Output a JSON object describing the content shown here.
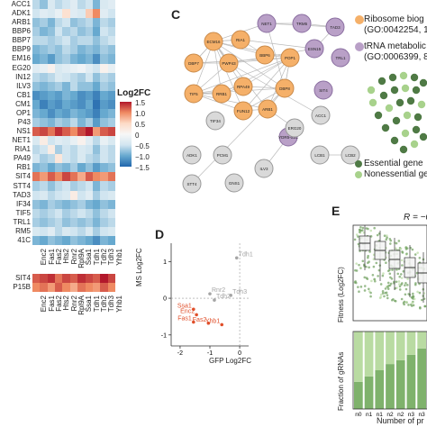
{
  "heatmap": {
    "rows": [
      "ACC1",
      "ADK1",
      "ARB1",
      "BBP6",
      "BBP7",
      "BBP9",
      "EM16",
      "EG20",
      "IN12",
      "ILV3",
      "CB1",
      "CM1",
      "OP1",
      "P43",
      "NS1",
      "NET1",
      "RIA1",
      "PA49",
      "RB1",
      "SIT4",
      "STT4",
      "TAD3",
      "IF34",
      "TIF5",
      "TRL1",
      "RM5",
      "41C"
    ],
    "cols": [
      "Enc2",
      "Fas1",
      "Fas2",
      "Hts2",
      "Rnr2",
      "Rpl9A",
      "Ssa1",
      "Tdh1",
      "Tdh2",
      "Tdh3",
      "Yhb1"
    ],
    "bottom_rows": [
      "SIT4",
      "P15B"
    ],
    "values": [
      [
        -0.6,
        -0.8,
        -0.4,
        -0.6,
        -0.5,
        -0.3,
        -0.6,
        -0.5,
        -0.9,
        -0.4,
        -0.3
      ],
      [
        -0.5,
        -0.3,
        -0.4,
        -0.2,
        0.4,
        -0.3,
        -0.4,
        0.6,
        1.0,
        -0.3,
        -0.5
      ],
      [
        -0.8,
        -0.7,
        -0.9,
        -0.6,
        -0.5,
        -0.8,
        -0.7,
        -0.6,
        -0.9,
        -0.6,
        -0.7
      ],
      [
        -0.7,
        -0.9,
        -0.8,
        -0.5,
        -0.7,
        -0.6,
        -0.8,
        -0.7,
        -1.0,
        -0.5,
        -0.6
      ],
      [
        -0.6,
        -0.6,
        -0.7,
        -0.6,
        -0.5,
        -0.7,
        -0.6,
        -0.6,
        -0.8,
        -0.6,
        -0.5
      ],
      [
        -0.9,
        -0.8,
        -0.7,
        -0.8,
        -0.6,
        -0.7,
        -0.9,
        -0.8,
        -0.9,
        -0.7,
        -0.8
      ],
      [
        -1.0,
        -0.9,
        -1.1,
        -0.8,
        -0.7,
        -0.9,
        -1.0,
        -0.9,
        -1.2,
        -0.8,
        -0.9
      ],
      [
        -0.3,
        -0.2,
        0.1,
        -0.4,
        -0.3,
        -0.2,
        -0.1,
        -0.3,
        -0.5,
        0.1,
        -0.2
      ],
      [
        -0.6,
        -0.7,
        -0.6,
        -0.4,
        -0.5,
        -0.6,
        -0.7,
        -0.5,
        -0.8,
        -0.6,
        -0.7
      ],
      [
        -0.8,
        -0.9,
        -0.8,
        -0.7,
        -0.9,
        -0.6,
        -0.8,
        -0.8,
        -1.0,
        -0.7,
        -0.8
      ],
      [
        -1.2,
        -1.1,
        -1.0,
        -1.1,
        -0.9,
        -1.0,
        -1.2,
        -1.1,
        -1.3,
        -1.0,
        -1.1
      ],
      [
        -1.0,
        -1.3,
        -1.1,
        -1.2,
        -1.0,
        -1.1,
        -1.2,
        -1.0,
        -1.4,
        -1.1,
        -1.2
      ],
      [
        -0.9,
        -1.0,
        -1.2,
        -1.0,
        -1.1,
        -0.9,
        -1.0,
        -1.1,
        -1.3,
        -1.0,
        -0.9
      ],
      [
        -0.7,
        -0.8,
        -0.9,
        -0.7,
        -0.8,
        -0.6,
        -0.9,
        -0.7,
        -1.1,
        -0.8,
        -0.7
      ],
      [
        1.2,
        1.3,
        1.1,
        1.4,
        1.2,
        1.0,
        1.3,
        1.5,
        0.9,
        1.2,
        1.3
      ],
      [
        -0.4,
        0.2,
        -0.5,
        -0.3,
        -0.4,
        -0.2,
        0.1,
        -0.3,
        -0.6,
        -0.2,
        -0.4
      ],
      [
        -0.6,
        -0.5,
        0.2,
        -0.7,
        -0.5,
        -0.6,
        -0.4,
        -0.5,
        -0.8,
        -0.5,
        -0.6
      ],
      [
        -0.5,
        -0.7,
        -0.6,
        0.3,
        -0.5,
        -0.6,
        -0.4,
        -0.6,
        -0.7,
        -0.5,
        -0.6
      ],
      [
        -0.9,
        -0.8,
        -1.0,
        -0.8,
        -0.9,
        -0.7,
        -1.0,
        -0.8,
        -1.1,
        -0.9,
        -0.8
      ],
      [
        1.1,
        0.9,
        1.2,
        1.0,
        1.3,
        1.1,
        0.8,
        1.2,
        1.0,
        0.9,
        1.1
      ],
      [
        -0.7,
        -0.6,
        -0.8,
        -0.6,
        -0.5,
        -0.7,
        -0.6,
        -0.5,
        -0.9,
        -0.6,
        -0.7
      ],
      [
        -0.5,
        -0.4,
        -0.6,
        -0.5,
        -0.4,
        0.2,
        -0.5,
        -0.3,
        -0.7,
        -0.5,
        -0.4
      ],
      [
        -0.8,
        -0.9,
        -0.7,
        -0.8,
        -0.9,
        -0.8,
        -0.7,
        -0.9,
        -1.0,
        -0.8,
        -0.9
      ],
      [
        -0.6,
        -0.7,
        -0.6,
        -0.5,
        -0.7,
        -0.6,
        -0.5,
        -0.6,
        -0.8,
        -0.6,
        -0.5
      ],
      [
        -0.7,
        -0.8,
        -0.7,
        -0.6,
        -0.8,
        -0.7,
        -0.8,
        -0.7,
        -0.9,
        -0.7,
        -0.6
      ],
      [
        -0.4,
        -0.5,
        -0.3,
        -0.6,
        -0.4,
        -0.5,
        -0.6,
        -0.4,
        -0.7,
        -0.5,
        -0.4
      ],
      [
        -0.9,
        -1.0,
        -0.8,
        -0.9,
        -1.0,
        -0.8,
        -0.9,
        -1.0,
        -1.2,
        -0.9,
        -1.0
      ]
    ],
    "bottom_values": [
      [
        1.2,
        1.3,
        1.4,
        1.1,
        1.3,
        1.2,
        1.4,
        1.3,
        1.2,
        1.5,
        1.3
      ],
      [
        1.0,
        1.1,
        0.9,
        1.2,
        1.0,
        0.8,
        1.1,
        1.0,
        0.9,
        1.2,
        1.0
      ]
    ]
  },
  "legend": {
    "title": "Log2FC",
    "ticks": [
      "1.5",
      "1.0",
      "0.5",
      "0",
      "−0.5",
      "−1.0",
      "−1.5"
    ]
  },
  "panel_c": {
    "label": "C",
    "ribosome_label": [
      "Ribosome biog",
      "(GO:0042254, 1:"
    ],
    "trna_label": [
      "tRNA metabolic",
      "(GO:0006399, 8"
    ],
    "essential_label": "Essential gene",
    "nonessential_label": "Nonessential gene",
    "orange_nodes": [
      "ECM16",
      "RIA1",
      "BBP6",
      "POP1",
      "DBP7",
      "PWP43",
      "TIF5",
      "RRB1",
      "RPA49",
      "DBP8",
      "FUN12",
      "ARB1"
    ],
    "purple_nodes": [
      "NET1",
      "TRM5",
      "TAD3",
      "ESN15",
      "TRL1",
      "SIT4",
      "YDR5-01C"
    ],
    "grey_nodes": [
      "TIF34",
      "ACC1",
      "ERG20",
      "ADK1",
      "PCM1",
      "LCB1",
      "LCB2",
      "ILV3",
      "STT4",
      "GNS1"
    ]
  },
  "panel_d": {
    "label": "D",
    "xlabel": "GFP Log2FC",
    "ylabel": "MS Log2FC",
    "xticks": [
      "-2",
      "-1",
      "0"
    ],
    "yticks": [
      "1",
      "0",
      "-1"
    ],
    "colors": {
      "up": "#e04f2a",
      "neutral": "#a5a5a5"
    },
    "chart_data": {
      "type": "scatter",
      "xlim": [
        -2.3,
        0.3
      ],
      "ylim": [
        -1.3,
        1.5
      ],
      "points": [
        {
          "label": "Tdh1",
          "x": -0.1,
          "y": 1.1,
          "group": "neutral"
        },
        {
          "label": "Rnr2",
          "x": -1.0,
          "y": 0.12,
          "group": "neutral"
        },
        {
          "label": "Tdh2",
          "x": -0.85,
          "y": -0.05,
          "group": "neutral"
        },
        {
          "label": "Tdh3",
          "x": -0.3,
          "y": 0.08,
          "group": "neutral"
        },
        {
          "label": "Ssa1",
          "x": -1.55,
          "y": -0.3,
          "group": "up"
        },
        {
          "label": "Enc2",
          "x": -1.45,
          "y": -0.45,
          "group": "up"
        },
        {
          "label": "Fas1",
          "x": -1.55,
          "y": -0.65,
          "group": "up"
        },
        {
          "label": "Fas2",
          "x": -1.05,
          "y": -0.68,
          "group": "up"
        },
        {
          "label": "Yhb1",
          "x": -0.6,
          "y": -0.72,
          "group": "up"
        }
      ]
    }
  },
  "panel_e": {
    "label": "E",
    "r_label": "R = −0.",
    "ylabel_top": "Fitness (Log2FC)",
    "ylabel_bottom": "Fraction of gRNAs",
    "xlabel": "Number of pr",
    "xticks": [
      "n0",
      "n1",
      "n1",
      "n2",
      "n2",
      "n3",
      "n3"
    ],
    "colors": {
      "dark": "#7fb26c",
      "light": "#b9dba2"
    },
    "chart_data": {
      "type": "bar",
      "categories": [
        "n0",
        "n0.5",
        "n1",
        "n1.5",
        "n2",
        "n2.5",
        "n3"
      ],
      "series": [
        {
          "values": [
            0.35,
            0.42,
            0.5,
            0.58,
            0.63,
            0.7,
            0.78
          ]
        },
        {
          "values": [
            0.65,
            0.58,
            0.5,
            0.42,
            0.37,
            0.3,
            0.22
          ]
        }
      ]
    }
  }
}
